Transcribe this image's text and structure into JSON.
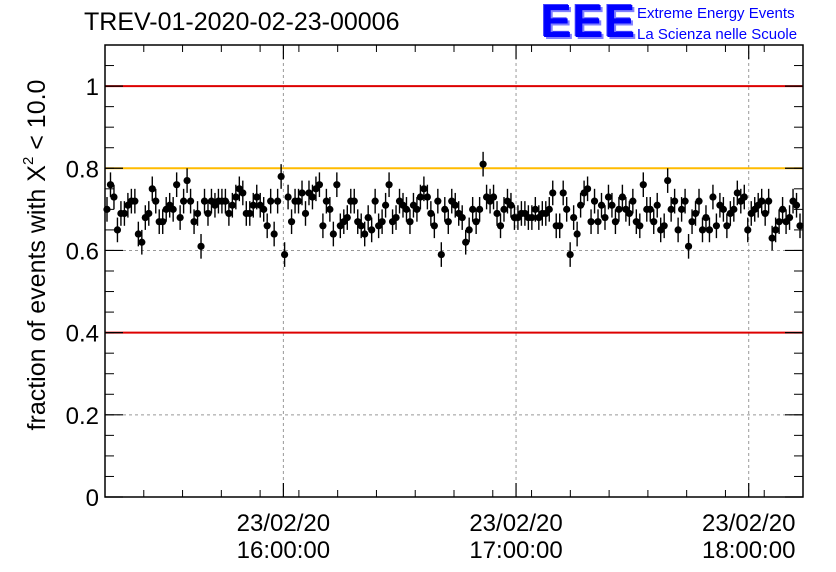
{
  "title": "TREV-01-2020-02-23-00006",
  "logo": {
    "letters": "EEE",
    "line1": "Extreme Energy Events",
    "line2": "La Scienza nelle Scuole"
  },
  "colors": {
    "reference_limit": "#dd0000",
    "warning_level": "#ffbb00",
    "marker": "#000000",
    "grid": "#999999",
    "logo": "#0000ff"
  },
  "chart_data": {
    "type": "scatter",
    "title": "TREV-01-2020-02-23-00006",
    "ylabel_prefix": "fraction of events with ",
    "ylabel_symbol": "X",
    "ylabel_sup": "2",
    "ylabel_suffix": " < 10.0",
    "xlabel": "",
    "ylim": [
      0,
      1.1
    ],
    "xlim": [
      "23/02/20 15:14:00",
      "23/02/20 18:14:00"
    ],
    "grid": true,
    "yticks": [
      "0",
      "0.2",
      "0.4",
      "0.6",
      "0.8",
      "1"
    ],
    "xticks": [
      {
        "date": "23/02/20",
        "time": "16:00:00"
      },
      {
        "date": "23/02/20",
        "time": "17:00:00"
      },
      {
        "date": "23/02/20",
        "time": "18:00:00"
      }
    ],
    "reference_lines": [
      {
        "y": 1.0,
        "color": "#dd0000"
      },
      {
        "y": 0.8,
        "color": "#ffbb00"
      },
      {
        "y": 0.4,
        "color": "#dd0000"
      }
    ],
    "error_bar": 0.03,
    "series": [
      {
        "values": [
          0.7,
          0.76,
          0.73,
          0.65,
          0.69,
          0.69,
          0.71,
          0.72,
          0.72,
          0.64,
          0.62,
          0.68,
          0.69,
          0.75,
          0.72,
          0.67,
          0.67,
          0.7,
          0.71,
          0.7,
          0.76,
          0.68,
          0.72,
          0.77,
          0.72,
          0.67,
          0.69,
          0.61,
          0.72,
          0.69,
          0.72,
          0.71,
          0.72,
          0.72,
          0.72,
          0.69,
          0.71,
          0.73,
          0.75,
          0.74,
          0.69,
          0.69,
          0.71,
          0.73,
          0.71,
          0.7,
          0.66,
          0.72,
          0.64,
          0.72,
          0.78,
          0.59,
          0.73,
          0.67,
          0.72,
          0.72,
          0.74,
          0.69,
          0.74,
          0.73,
          0.75,
          0.76,
          0.66,
          0.72,
          0.7,
          0.64,
          0.76,
          0.66,
          0.67,
          0.68,
          0.72,
          0.72,
          0.67,
          0.66,
          0.64,
          0.68,
          0.65,
          0.72,
          0.66,
          0.67,
          0.71,
          0.76,
          0.67,
          0.68,
          0.72,
          0.71,
          0.7,
          0.67,
          0.71,
          0.7,
          0.73,
          0.75,
          0.73,
          0.69,
          0.66,
          0.72,
          0.59,
          0.7,
          0.67,
          0.72,
          0.71,
          0.69,
          0.68,
          0.62,
          0.65,
          0.7,
          0.67,
          0.7,
          0.81,
          0.73,
          0.72,
          0.73,
          0.69,
          0.66,
          0.7,
          0.72,
          0.71,
          0.68,
          0.68,
          0.69,
          0.69,
          0.68,
          0.68,
          0.7,
          0.68,
          0.69,
          0.69,
          0.7,
          0.74,
          0.66,
          0.66,
          0.74,
          0.7,
          0.59,
          0.68,
          0.64,
          0.71,
          0.74,
          0.75,
          0.67,
          0.72,
          0.67,
          0.71,
          0.68,
          0.73,
          0.71,
          0.67,
          0.7,
          0.73,
          0.7,
          0.69,
          0.72,
          0.67,
          0.66,
          0.76,
          0.7,
          0.7,
          0.67,
          0.71,
          0.65,
          0.66,
          0.77,
          0.7,
          0.72,
          0.65,
          0.7,
          0.72,
          0.61,
          0.67,
          0.69,
          0.72,
          0.65,
          0.68,
          0.65,
          0.73,
          0.66,
          0.71,
          0.7,
          0.66,
          0.69,
          0.7,
          0.74,
          0.72,
          0.73,
          0.65,
          0.69,
          0.7,
          0.71,
          0.72,
          0.69,
          0.72,
          0.63,
          0.65,
          0.67,
          0.7,
          0.67,
          0.68,
          0.72,
          0.71,
          0.66
        ]
      }
    ]
  }
}
